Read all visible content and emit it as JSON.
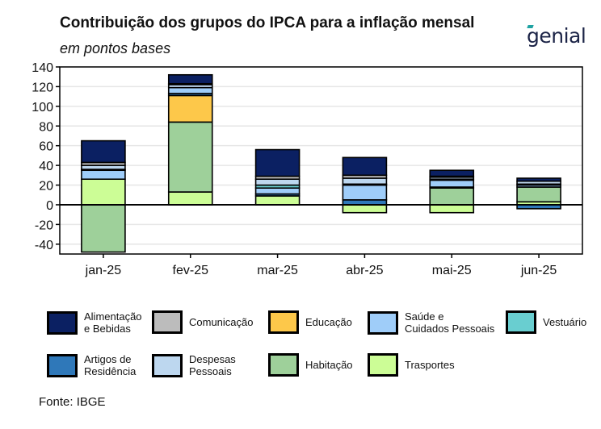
{
  "title": "Contribuição dos grupos do IPCA para a inflação mensal",
  "subtitle": "em pontos bases",
  "logo": "genial",
  "source": "Fonte: IBGE",
  "colors": {
    "alimentacao": "#0b2062",
    "artigos": "#2f78b9",
    "comunicacao": "#bcbcbc",
    "despesas": "#bdd7ef",
    "educacao": "#fdc84a",
    "habitacao": "#9ed09a",
    "saude": "#9fcdf9",
    "transportes": "#ccfd96",
    "vestuario": "#69ced0"
  },
  "legend": [
    {
      "key": "alimentacao",
      "label": "Alimentação\ne Bebidas",
      "color": "#0b2062"
    },
    {
      "key": "comunicacao",
      "label": "Comunicação",
      "color": "#bcbcbc"
    },
    {
      "key": "educacao",
      "label": "Educação",
      "color": "#fdc84a"
    },
    {
      "key": "saude",
      "label": "Saúde e\nCuidados Pessoais",
      "color": "#9fcdf9"
    },
    {
      "key": "vestuario",
      "label": "Vestuário",
      "color": "#69ced0"
    },
    {
      "key": "artigos",
      "label": "Artigos de\nResidência",
      "color": "#2f78b9"
    },
    {
      "key": "despesas",
      "label": "Despesas\nPessoais",
      "color": "#bdd7ef"
    },
    {
      "key": "habitacao",
      "label": "Habitação",
      "color": "#9ed09a"
    },
    {
      "key": "transportes",
      "label": "Trasportes",
      "color": "#ccfd96"
    }
  ],
  "chart_data": {
    "type": "bar",
    "stacked": true,
    "categories": [
      "jan-25",
      "fev-25",
      "mar-25",
      "abr-25",
      "mai-25",
      "jun-25"
    ],
    "ylim": [
      -50,
      140
    ],
    "yticks": [
      -40,
      -20,
      0,
      20,
      40,
      60,
      80,
      100,
      120,
      140
    ],
    "grid": true,
    "legend_position": "bottom",
    "series_order": [
      "transportes",
      "habitacao",
      "educacao",
      "artigos",
      "saude",
      "vestuario",
      "despesas",
      "comunicacao",
      "alimentacao"
    ],
    "series": [
      {
        "key": "transportes",
        "name": "Trasportes",
        "values": [
          26,
          13,
          9,
          -8,
          -8,
          3
        ]
      },
      {
        "key": "habitacao",
        "name": "Habitação",
        "values": [
          -48,
          71,
          0,
          0,
          17,
          15
        ]
      },
      {
        "key": "educacao",
        "name": "Educação",
        "values": [
          0,
          27,
          0,
          0,
          0,
          0
        ]
      },
      {
        "key": "artigos",
        "name": "Artigos de Residência",
        "values": [
          0,
          2,
          2,
          5,
          1,
          -4
        ]
      },
      {
        "key": "saude",
        "name": "Saúde e Cuidados Pessoais",
        "values": [
          9,
          6,
          6,
          15,
          7,
          2
        ]
      },
      {
        "key": "vestuario",
        "name": "Vestuário",
        "values": [
          1,
          0,
          3,
          1,
          1,
          1
        ]
      },
      {
        "key": "despesas",
        "name": "Despesas Pessoais",
        "values": [
          4,
          3,
          6,
          6,
          2,
          3
        ]
      },
      {
        "key": "comunicacao",
        "name": "Comunicação",
        "values": [
          3,
          1,
          3,
          3,
          1,
          0
        ]
      },
      {
        "key": "alimentacao",
        "name": "Alimentação e Bebidas",
        "values": [
          22,
          9,
          27,
          18,
          6,
          3
        ]
      }
    ]
  }
}
